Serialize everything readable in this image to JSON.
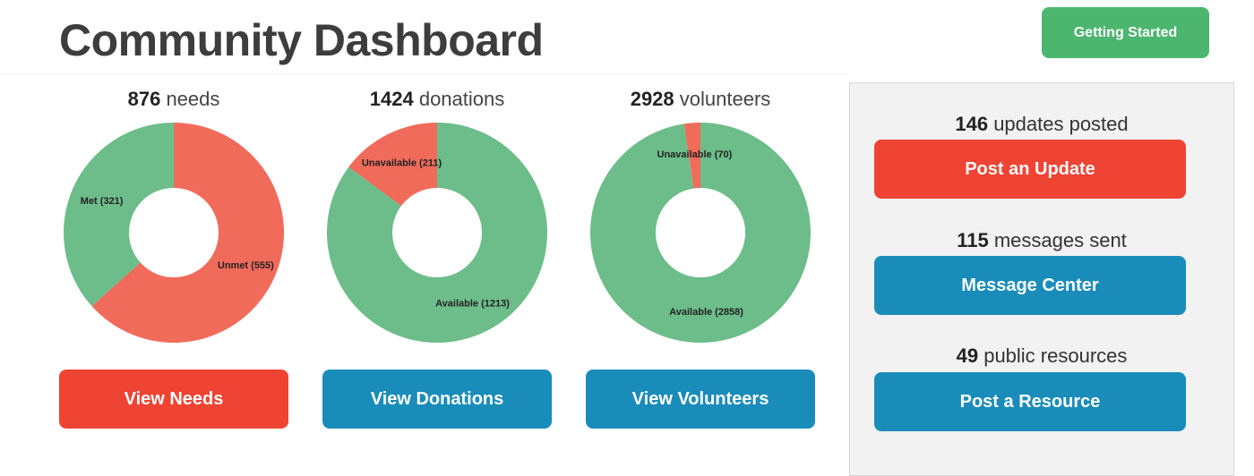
{
  "header": {
    "title": "Community Dashboard",
    "getting_started_label": "Getting Started"
  },
  "colors": {
    "red": "#ef4433",
    "blue": "#1a8cba",
    "green": "#4cb56e",
    "donut_red": "#f16b5b",
    "donut_green": "#6dbd8a"
  },
  "stats": {
    "needs": {
      "count": "876",
      "word": "needs",
      "button": "View Needs"
    },
    "donations": {
      "count": "1424",
      "word": "donations",
      "button": "View Donations"
    },
    "volunteers": {
      "count": "2928",
      "word": "volunteers",
      "button": "View Volunteers"
    }
  },
  "chart_data": [
    {
      "type": "pie",
      "categories": [
        "Unmet",
        "Met"
      ],
      "values": [
        555,
        321
      ],
      "labels": [
        "Unmet (555)",
        "Met (321)"
      ],
      "colors": [
        "#f16b5b",
        "#6dbd8a"
      ],
      "donut": true
    },
    {
      "type": "pie",
      "categories": [
        "Available",
        "Unavailable"
      ],
      "values": [
        1213,
        211
      ],
      "labels": [
        "Available (1213)",
        "Unavailable (211)"
      ],
      "colors": [
        "#6dbd8a",
        "#f16b5b"
      ],
      "donut": true
    },
    {
      "type": "pie",
      "categories": [
        "Available",
        "Unavailable"
      ],
      "values": [
        2858,
        70
      ],
      "labels": [
        "Available (2858)",
        "Unavailable (70)"
      ],
      "colors": [
        "#6dbd8a",
        "#f16b5b"
      ],
      "donut": true
    }
  ],
  "sidebar": {
    "updates": {
      "count": "146",
      "word": "updates posted",
      "button": "Post an Update"
    },
    "messages": {
      "count": "115",
      "word": "messages sent",
      "button": "Message Center"
    },
    "resources": {
      "count": "49",
      "word": "public resources",
      "button": "Post a Resource"
    }
  }
}
